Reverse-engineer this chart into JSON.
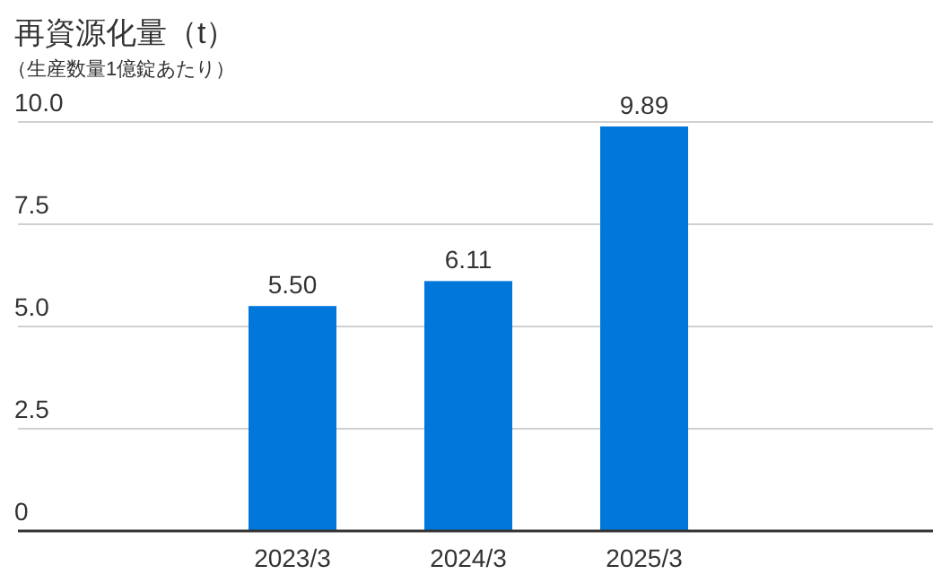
{
  "chart_data": {
    "type": "bar",
    "title": "再資源化量（t）",
    "subtitle": "（生産数量1億錠あたり）",
    "categories": [
      "2023/3",
      "2024/3",
      "2025/3"
    ],
    "values": [
      5.5,
      6.11,
      9.89
    ],
    "color": "#0077db",
    "value_labels": [
      "5.50",
      "6.11",
      "9.89"
    ],
    "ylim": [
      0,
      10
    ],
    "yticks": [
      {
        "value": 0,
        "label": "0"
      },
      {
        "value": 2.5,
        "label": "2.5"
      },
      {
        "value": 5,
        "label": "5.0"
      },
      {
        "value": 7.5,
        "label": "7.5"
      },
      {
        "value": 10,
        "label": "10.0"
      }
    ],
    "grid": "y"
  }
}
